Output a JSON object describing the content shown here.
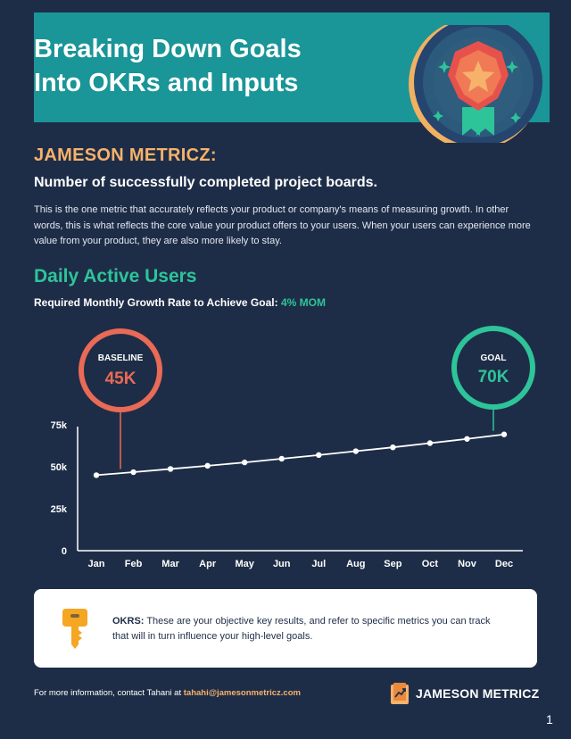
{
  "header": {
    "title": "Breaking Down Goals\nInto OKRs and Inputs",
    "badge_icon": "star-medal-icon"
  },
  "company_heading": "JAMESON METRICZ:",
  "metric": {
    "title": "Number of successfully completed project boards.",
    "description": "This is the one metric that accurately reflects your product or company's means of measuring growth. In other words, this is what reflects the core value your product offers to your users. When your users can experience more value from your product, they are also more likely to stay."
  },
  "section": {
    "title": "Daily Active Users",
    "growth_label": "Required Monthly Growth Rate to Achieve Goal:",
    "growth_value": "4% MOM"
  },
  "chart_data": {
    "type": "line",
    "title": "Daily Active Users",
    "categories": [
      "Jan",
      "Feb",
      "Mar",
      "Apr",
      "May",
      "Jun",
      "Jul",
      "Aug",
      "Sep",
      "Oct",
      "Nov",
      "Dec"
    ],
    "values": [
      45000,
      46800,
      48700,
      50600,
      52600,
      54800,
      57000,
      59300,
      61600,
      64100,
      66600,
      69300
    ],
    "y_ticks": [
      0,
      25000,
      50000,
      75000
    ],
    "y_tick_labels": [
      "0",
      "25k",
      "50k",
      "75k"
    ],
    "ylim": [
      0,
      75000
    ],
    "xlabel": "",
    "ylabel": "",
    "annotations": [
      {
        "label": "BASELINE",
        "value": "45K",
        "color": "#e96a56"
      },
      {
        "label": "GOAL",
        "value": "70K",
        "color": "#2ec49a"
      }
    ]
  },
  "okr": {
    "icon": "key-icon",
    "label": "OKRS:",
    "text": "These are your objective key results, and refer to specific metrics you can track that will in turn influence your high-level goals."
  },
  "footer": {
    "note_prefix": "For more information, contact  Tahani at",
    "email": "tahahi@jamesonmetricz.com",
    "brand": "JAMESON METRICZ",
    "page_number": "1"
  },
  "colors": {
    "background": "#1e2d47",
    "banner": "#1a9598",
    "accent_orange": "#f6b26b",
    "accent_green": "#2ec49a",
    "accent_coral": "#e96a56"
  }
}
